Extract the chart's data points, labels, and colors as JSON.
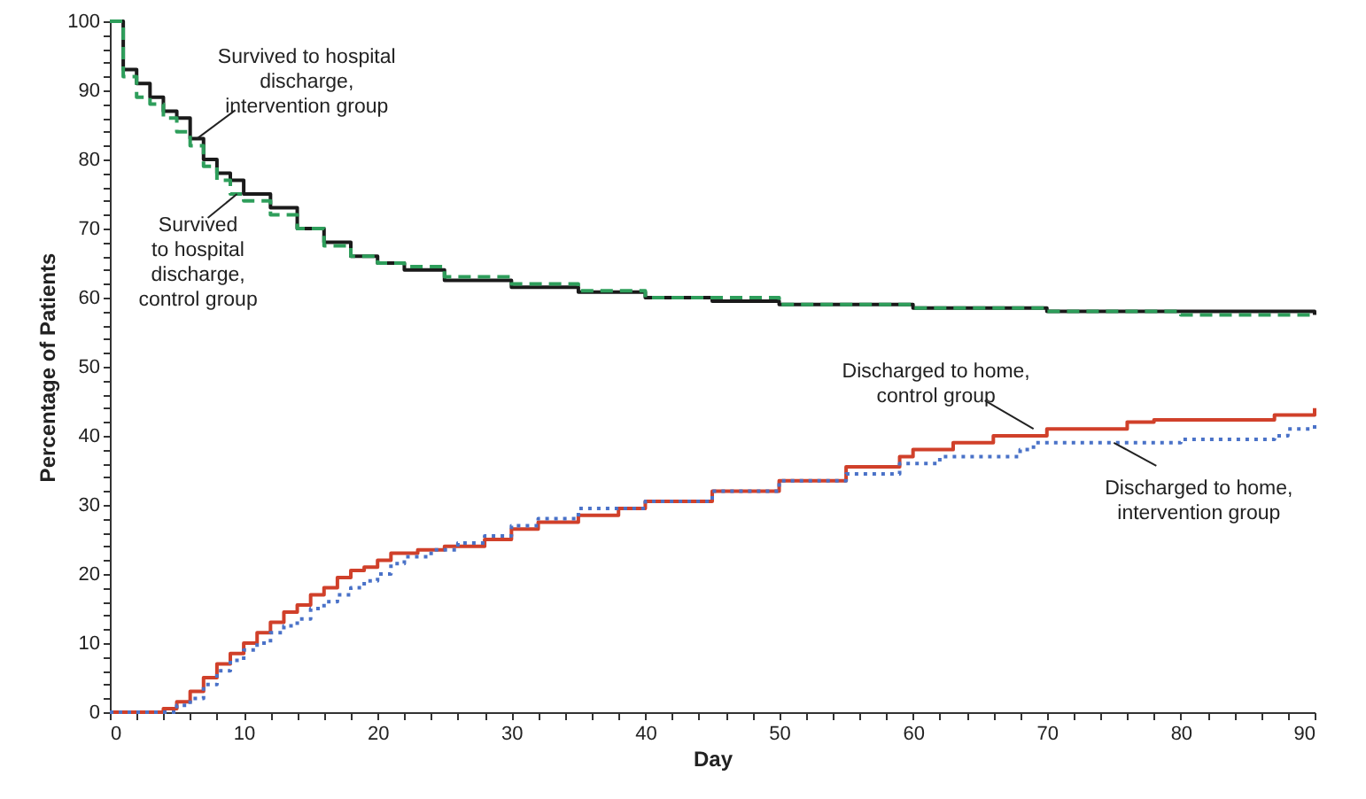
{
  "chart_data": {
    "type": "step",
    "xlabel": "Day",
    "ylabel": "Percentage of Patients",
    "xlim": [
      0,
      90
    ],
    "ylim": [
      0,
      100
    ],
    "xticks": [
      0,
      {
        "value": 2,
        "label": null
      },
      {
        "value": 4,
        "label": null
      },
      {
        "value": 6,
        "label": null
      },
      {
        "value": 8,
        "label": null
      },
      10,
      {
        "value": 12,
        "label": null
      },
      {
        "value": 14,
        "label": null
      },
      {
        "value": 16,
        "label": null
      },
      {
        "value": 18,
        "label": null
      },
      20,
      {
        "value": 22,
        "label": null
      },
      {
        "value": 24,
        "label": null
      },
      {
        "value": 26,
        "label": null
      },
      {
        "value": 28,
        "label": null
      },
      30,
      {
        "value": 32,
        "label": null
      },
      {
        "value": 34,
        "label": null
      },
      {
        "value": 36,
        "label": null
      },
      {
        "value": 38,
        "label": null
      },
      40,
      {
        "value": 42,
        "label": null
      },
      {
        "value": 44,
        "label": null
      },
      {
        "value": 46,
        "label": null
      },
      {
        "value": 48,
        "label": null
      },
      50,
      {
        "value": 52,
        "label": null
      },
      {
        "value": 54,
        "label": null
      },
      {
        "value": 56,
        "label": null
      },
      {
        "value": 58,
        "label": null
      },
      60,
      {
        "value": 62,
        "label": null
      },
      {
        "value": 64,
        "label": null
      },
      {
        "value": 66,
        "label": null
      },
      {
        "value": 68,
        "label": null
      },
      70,
      {
        "value": 72,
        "label": null
      },
      {
        "value": 74,
        "label": null
      },
      {
        "value": 76,
        "label": null
      },
      {
        "value": 78,
        "label": null
      },
      80,
      {
        "value": 82,
        "label": null
      },
      {
        "value": 84,
        "label": null
      },
      {
        "value": 86,
        "label": null
      },
      {
        "value": 88,
        "label": null
      },
      90
    ],
    "yticks": [
      0,
      {
        "value": 2,
        "label": null
      },
      {
        "value": 4,
        "label": null
      },
      {
        "value": 6,
        "label": null
      },
      {
        "value": 8,
        "label": null
      },
      10,
      {
        "value": 12,
        "label": null
      },
      {
        "value": 14,
        "label": null
      },
      {
        "value": 16,
        "label": null
      },
      {
        "value": 18,
        "label": null
      },
      20,
      {
        "value": 22,
        "label": null
      },
      {
        "value": 24,
        "label": null
      },
      {
        "value": 26,
        "label": null
      },
      {
        "value": 28,
        "label": null
      },
      30,
      {
        "value": 32,
        "label": null
      },
      {
        "value": 34,
        "label": null
      },
      {
        "value": 36,
        "label": null
      },
      {
        "value": 38,
        "label": null
      },
      40,
      {
        "value": 42,
        "label": null
      },
      {
        "value": 44,
        "label": null
      },
      {
        "value": 46,
        "label": null
      },
      {
        "value": 48,
        "label": null
      },
      50,
      {
        "value": 52,
        "label": null
      },
      {
        "value": 54,
        "label": null
      },
      {
        "value": 56,
        "label": null
      },
      {
        "value": 58,
        "label": null
      },
      60,
      {
        "value": 62,
        "label": null
      },
      {
        "value": 64,
        "label": null
      },
      {
        "value": 66,
        "label": null
      },
      {
        "value": 68,
        "label": null
      },
      70,
      {
        "value": 72,
        "label": null
      },
      {
        "value": 74,
        "label": null
      },
      {
        "value": 76,
        "label": null
      },
      {
        "value": 78,
        "label": null
      },
      80,
      {
        "value": 82,
        "label": null
      },
      {
        "value": 84,
        "label": null
      },
      {
        "value": 86,
        "label": null
      },
      {
        "value": 88,
        "label": null
      },
      90,
      {
        "value": 92,
        "label": null
      },
      {
        "value": 94,
        "label": null
      },
      {
        "value": 96,
        "label": null
      },
      {
        "value": 98,
        "label": null
      },
      100
    ],
    "grid": false,
    "marker": "none",
    "series": [
      {
        "color": "#1a1a1a",
        "line_style": "solid",
        "x": [
          0,
          1,
          2,
          3,
          4,
          5,
          6,
          7,
          8,
          9,
          10,
          12,
          14,
          16,
          18,
          20,
          22,
          25,
          30,
          35,
          40,
          45,
          50,
          60,
          70,
          80,
          90
        ],
        "values": [
          100,
          93,
          91,
          89,
          87,
          86,
          83,
          80,
          78,
          77,
          75,
          73,
          70,
          68,
          66,
          65,
          64,
          62.5,
          61.5,
          60.8,
          60,
          59.5,
          59,
          58.5,
          58,
          58,
          57.5
        ]
      },
      {
        "color": "#2e9e5b",
        "line_style": "dashed",
        "x": [
          0,
          1,
          2,
          3,
          4,
          5,
          6,
          7,
          8,
          9,
          10,
          12,
          14,
          16,
          18,
          20,
          22,
          25,
          30,
          35,
          40,
          50,
          60,
          70,
          80,
          90
        ],
        "values": [
          100,
          92,
          89,
          88,
          86,
          84,
          82,
          79,
          77,
          75,
          74,
          72,
          70,
          67.5,
          66,
          65,
          64.5,
          63,
          62,
          61,
          60,
          59,
          58.5,
          58,
          57.5,
          57.5
        ]
      },
      {
        "color": "#d0402a",
        "line_style": "solid",
        "x": [
          0,
          4,
          5,
          6,
          7,
          8,
          9,
          10,
          11,
          12,
          13,
          14,
          15,
          16,
          17,
          18,
          19,
          20,
          21,
          23,
          25,
          28,
          30,
          32,
          35,
          38,
          40,
          45,
          50,
          55,
          59,
          60,
          63,
          66,
          70,
          76,
          78,
          87,
          90
        ],
        "values": [
          0,
          0.5,
          1.5,
          3,
          5,
          7,
          8.5,
          10,
          11.5,
          13,
          14.5,
          15.5,
          17,
          18,
          19.5,
          20.5,
          21,
          22,
          23,
          23.5,
          24,
          25,
          26.5,
          27.5,
          28.5,
          29.5,
          30.5,
          32,
          33.5,
          35.5,
          37,
          38,
          39,
          40,
          41,
          42,
          42.3,
          43,
          44
        ]
      },
      {
        "color": "#4a72c8",
        "line_style": "dotted",
        "x": [
          0,
          5,
          6,
          7,
          8,
          9,
          10,
          11,
          12,
          13,
          14,
          15,
          16,
          17,
          18,
          19,
          20,
          21,
          22,
          24,
          26,
          28,
          30,
          32,
          35,
          40,
          45,
          50,
          55,
          59,
          62,
          68,
          69,
          75,
          80,
          87,
          88,
          90
        ],
        "values": [
          0,
          1,
          2,
          4,
          6,
          7.5,
          9,
          10,
          11.5,
          12.5,
          13.5,
          15,
          16,
          17,
          18,
          19,
          20,
          21.5,
          22.5,
          23.5,
          24.5,
          25.5,
          27,
          28,
          29.5,
          30.5,
          32,
          33.5,
          34.5,
          36,
          37,
          38,
          39,
          39,
          39.5,
          40,
          41,
          42
        ]
      }
    ],
    "annotations": [
      {
        "text": "Survived to hospital\ndischarge,\nintervention group",
        "x": 6.5,
        "y": 83
      },
      {
        "text": "Survived\nto hospital\ndischarge,\ncontrol group",
        "x": 9.5,
        "y": 75
      },
      {
        "text": "Discharged to home,\ncontrol group",
        "x": 69,
        "y": 41
      },
      {
        "text": "Discharged to home,\nintervention group",
        "x": 75,
        "y": 39
      }
    ]
  }
}
